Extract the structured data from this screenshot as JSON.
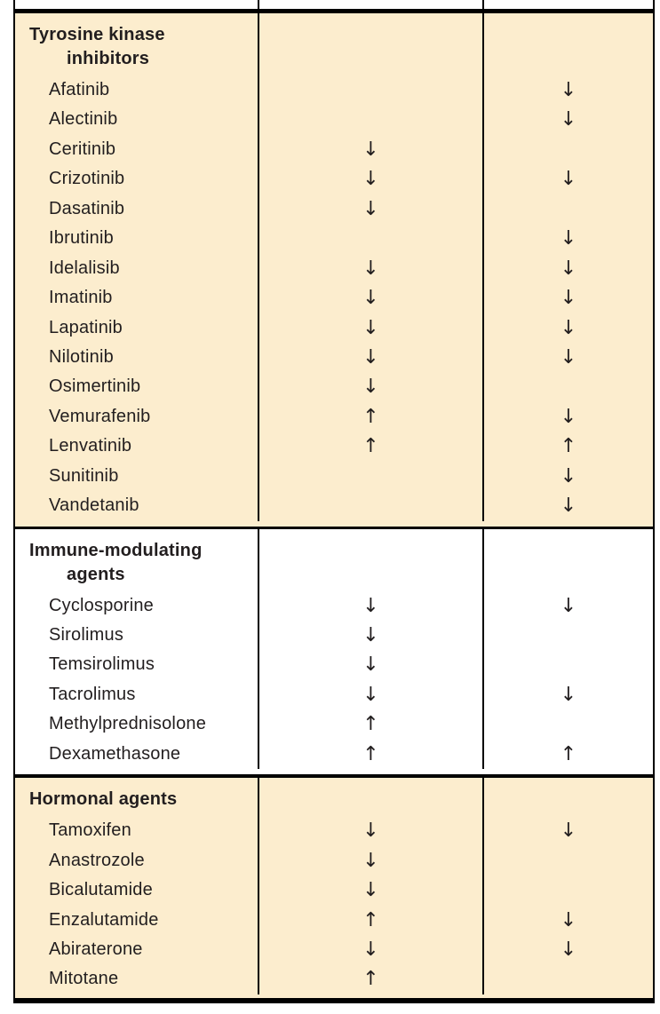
{
  "colors": {
    "section_highlight": "#FCEDCE",
    "section_plain": "#FFFFFF",
    "border": "#000000",
    "text": "#221E1F"
  },
  "glyphs": {
    "decrease_arrow": "↓",
    "increase_arrow": "↑"
  },
  "table": {
    "sections": [
      {
        "header": "Tyrosine kinase inhibitors",
        "rows": [
          {
            "drug": "Afatinib",
            "col2": "",
            "col3": "↓"
          },
          {
            "drug": "Alectinib",
            "col2": "",
            "col3": "↓"
          },
          {
            "drug": "Ceritinib",
            "col2": "↓",
            "col3": ""
          },
          {
            "drug": "Crizotinib",
            "col2": "↓",
            "col3": "↓"
          },
          {
            "drug": "Dasatinib",
            "col2": "↓",
            "col3": ""
          },
          {
            "drug": "Ibrutinib",
            "col2": "",
            "col3": "↓"
          },
          {
            "drug": "Idelalisib",
            "col2": "↓",
            "col3": "↓"
          },
          {
            "drug": "Imatinib",
            "col2": "↓",
            "col3": "↓"
          },
          {
            "drug": "Lapatinib",
            "col2": "↓",
            "col3": "↓"
          },
          {
            "drug": "Nilotinib",
            "col2": "↓",
            "col3": "↓"
          },
          {
            "drug": "Osimertinib",
            "col2": "↓",
            "col3": ""
          },
          {
            "drug": "Vemurafenib",
            "col2": "↑",
            "col3": "↓"
          },
          {
            "drug": "Lenvatinib",
            "col2": "↑",
            "col3": "↑"
          },
          {
            "drug": "Sunitinib",
            "col2": "",
            "col3": "↓"
          },
          {
            "drug": "Vandetanib",
            "col2": "",
            "col3": "↓"
          }
        ]
      },
      {
        "header": "Immune-modulating agents",
        "rows": [
          {
            "drug": "Cyclosporine",
            "col2": "↓",
            "col3": "↓"
          },
          {
            "drug": "Sirolimus",
            "col2": "↓",
            "col3": ""
          },
          {
            "drug": "Temsirolimus",
            "col2": "↓",
            "col3": ""
          },
          {
            "drug": "Tacrolimus",
            "col2": "↓",
            "col3": "↓"
          },
          {
            "drug": "Methylprednisolone",
            "col2": "↑",
            "col3": ""
          },
          {
            "drug": "Dexamethasone",
            "col2": "↑",
            "col3": "↑"
          }
        ]
      },
      {
        "header": "Hormonal agents",
        "rows": [
          {
            "drug": "Tamoxifen",
            "col2": "↓",
            "col3": "↓"
          },
          {
            "drug": "Anastrozole",
            "col2": "↓",
            "col3": ""
          },
          {
            "drug": "Bicalutamide",
            "col2": "↓",
            "col3": ""
          },
          {
            "drug": "Enzalutamide",
            "col2": "↑",
            "col3": "↓"
          },
          {
            "drug": "Abiraterone",
            "col2": "↓",
            "col3": "↓"
          },
          {
            "drug": "Mitotane",
            "col2": "↑",
            "col3": ""
          }
        ]
      }
    ]
  }
}
